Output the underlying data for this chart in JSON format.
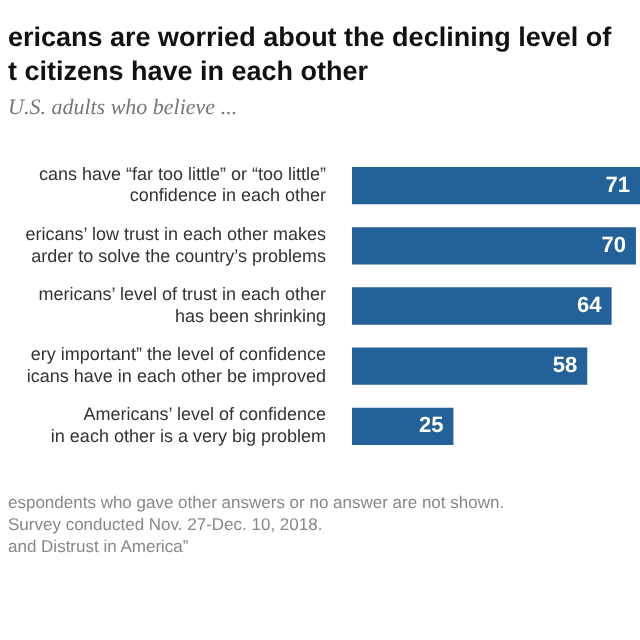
{
  "chart_data": {
    "type": "bar",
    "orientation": "horizontal",
    "title": "ericans are worried about the declining level of\nt citizens have in each other",
    "subtitle": "U.S. adults who believe ...",
    "categories": [
      "cans have “far too little” or “too little”\nconfidence in each other",
      "ericans’ low trust in each other makes\narder to solve the country’s problems",
      "mericans’ level of trust in each other\nhas been shrinking",
      "ery important” the level of confidence\nicans have in each other be improved",
      "Americans’ level of confidence\nin each other is a very big problem"
    ],
    "values": [
      71,
      70,
      64,
      58,
      25
    ],
    "color": "#236199",
    "data_labels": true,
    "annotations": [
      "espondents who gave other answers or no answer are not shown.",
      "Survey conducted Nov. 27-Dec. 10, 2018.",
      "and Distrust in America”"
    ]
  }
}
